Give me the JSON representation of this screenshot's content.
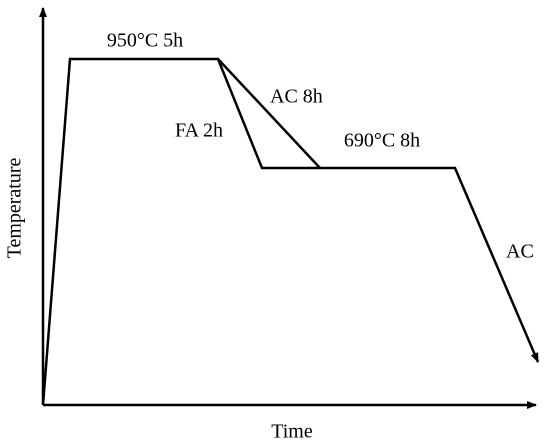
{
  "axes": {
    "y_label": "Temperature",
    "x_label": "Time"
  },
  "labels": {
    "solution": "950°C 5h",
    "air_cool": "AC 8h",
    "furnace": "FA 2h",
    "aging": "690°C 8h",
    "final": "AC"
  }
}
